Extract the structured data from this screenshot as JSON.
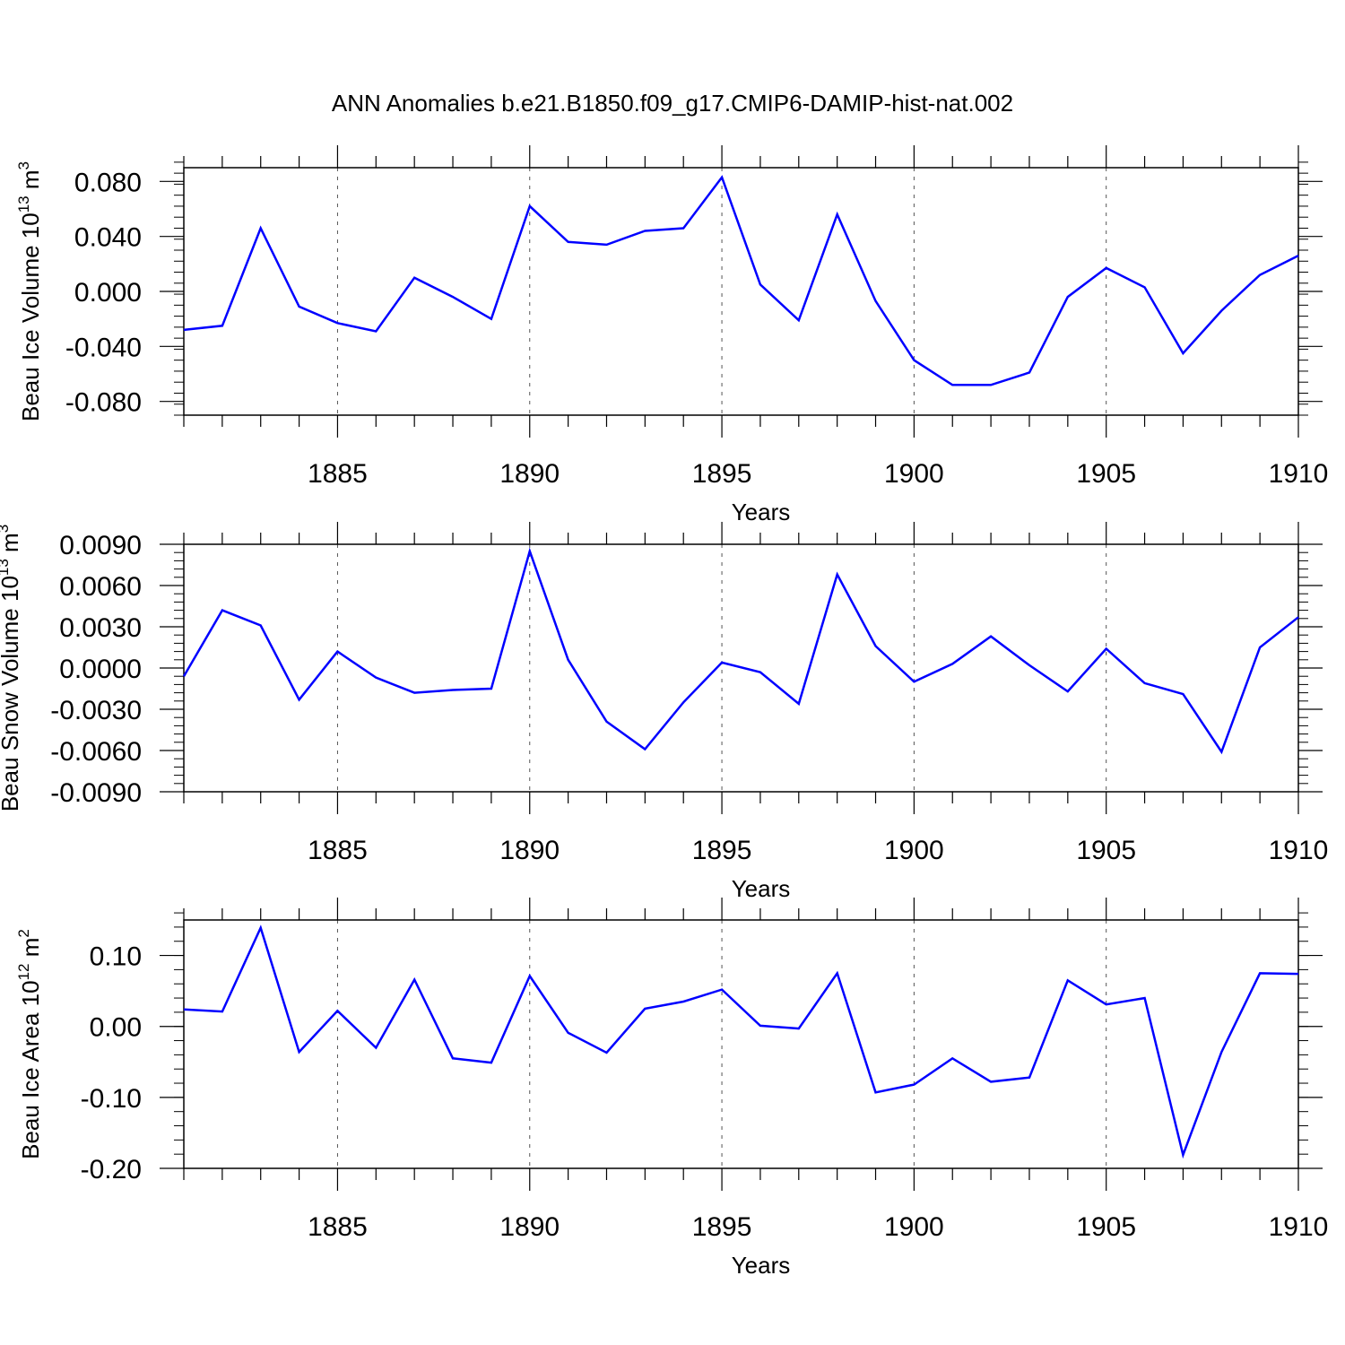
{
  "title": "ANN Anomalies b.e21.B1850.f09_g17.CMIP6-DAMIP-hist-nat.002",
  "colors": {
    "line": "#0000ff",
    "axis": "#000000",
    "grid": "#555555"
  },
  "chart_data": [
    {
      "type": "line",
      "ylabel": {
        "main": "Beau Ice Volume 10",
        "sup": "13",
        "mid": " m",
        "sup2": "3"
      },
      "xlabel": "Years",
      "xlim": [
        1881,
        1910
      ],
      "ylim": [
        -0.09,
        0.09
      ],
      "xticks": [
        1885,
        1890,
        1895,
        1900,
        1905,
        1910
      ],
      "yticks": [
        -0.08,
        -0.04,
        0.0,
        0.04,
        0.08
      ],
      "ytick_labels": [
        "-0.080",
        "-0.040",
        "0.000",
        "0.040",
        "0.080"
      ],
      "y_minor_step": 0.008,
      "x": [
        1881,
        1882,
        1883,
        1884,
        1885,
        1886,
        1887,
        1888,
        1889,
        1890,
        1891,
        1892,
        1893,
        1894,
        1895,
        1896,
        1897,
        1898,
        1899,
        1900,
        1901,
        1902,
        1903,
        1904,
        1905,
        1906,
        1907,
        1908,
        1909,
        1910
      ],
      "values": [
        -0.028,
        -0.025,
        0.046,
        -0.011,
        -0.023,
        -0.029,
        0.01,
        -0.004,
        -0.02,
        0.062,
        0.036,
        0.034,
        0.044,
        0.046,
        0.083,
        0.005,
        -0.021,
        0.056,
        -0.007,
        -0.05,
        -0.068,
        -0.068,
        -0.059,
        -0.004,
        0.017,
        0.003,
        -0.045,
        -0.014,
        0.012,
        0.026
      ]
    },
    {
      "type": "line",
      "ylabel": {
        "main": "Beau Snow Volume 10",
        "sup": "13",
        "mid": " m",
        "sup2": "3"
      },
      "xlabel": "Years",
      "xlim": [
        1881,
        1910
      ],
      "ylim": [
        -0.009,
        0.009
      ],
      "xticks": [
        1885,
        1890,
        1895,
        1900,
        1905,
        1910
      ],
      "yticks": [
        -0.009,
        -0.006,
        -0.003,
        0.0,
        0.003,
        0.006,
        0.009
      ],
      "ytick_labels": [
        "-0.0090",
        "-0.0060",
        "-0.0030",
        "0.0000",
        "0.0030",
        "0.0060",
        "0.0090"
      ],
      "y_minor_step": 0.0006,
      "x": [
        1881,
        1882,
        1883,
        1884,
        1885,
        1886,
        1887,
        1888,
        1889,
        1890,
        1891,
        1892,
        1893,
        1894,
        1895,
        1896,
        1897,
        1898,
        1899,
        1900,
        1901,
        1902,
        1903,
        1904,
        1905,
        1906,
        1907,
        1908,
        1909,
        1910
      ],
      "values": [
        -0.0006,
        0.0042,
        0.0031,
        -0.0023,
        0.0012,
        -0.0007,
        -0.0018,
        -0.0016,
        -0.0015,
        0.0085,
        0.0006,
        -0.0039,
        -0.0059,
        -0.0025,
        0.0004,
        -0.0003,
        -0.0026,
        0.0068,
        0.0016,
        -0.001,
        0.0003,
        0.0023,
        0.0002,
        -0.0017,
        0.0014,
        -0.0011,
        -0.0019,
        -0.0061,
        0.0015,
        0.0037
      ]
    },
    {
      "type": "line",
      "ylabel": {
        "main": "Beau Ice Area 10",
        "sup": "12",
        "mid": " m",
        "sup2": "2"
      },
      "xlabel": "Years",
      "xlim": [
        1881,
        1910
      ],
      "ylim": [
        -0.2,
        0.15
      ],
      "xticks": [
        1885,
        1890,
        1895,
        1900,
        1905,
        1910
      ],
      "yticks": [
        -0.2,
        -0.1,
        0.0,
        0.1
      ],
      "ytick_labels": [
        "-0.20",
        "-0.10",
        "0.00",
        "0.10"
      ],
      "y_minor_step": 0.02,
      "x": [
        1881,
        1882,
        1883,
        1884,
        1885,
        1886,
        1887,
        1888,
        1889,
        1890,
        1891,
        1892,
        1893,
        1894,
        1895,
        1896,
        1897,
        1898,
        1899,
        1900,
        1901,
        1902,
        1903,
        1904,
        1905,
        1906,
        1907,
        1908,
        1909,
        1910
      ],
      "values": [
        0.024,
        0.021,
        0.139,
        -0.036,
        0.022,
        -0.03,
        0.066,
        -0.045,
        -0.051,
        0.071,
        -0.009,
        -0.037,
        0.025,
        0.035,
        0.052,
        0.001,
        -0.003,
        0.075,
        -0.093,
        -0.082,
        -0.045,
        -0.078,
        -0.072,
        0.065,
        0.031,
        0.04,
        -0.181,
        -0.036,
        0.075,
        0.074
      ]
    }
  ]
}
